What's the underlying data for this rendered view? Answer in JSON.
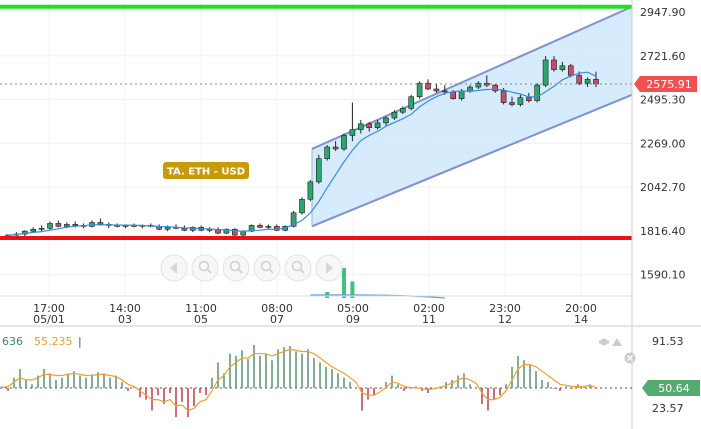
{
  "chart_data": [
    {
      "type": "candlestick",
      "title": "",
      "watermark": "TA.  ETH - USD",
      "ylim": [
        1480,
        3010
      ],
      "y_ticks": [
        "2947.90",
        "2721.60",
        "2495.30",
        "2269.00",
        "2042.70",
        "1816.40",
        "1590.10"
      ],
      "price_label": "2575.91",
      "last_price": 2575.91,
      "x_ticks": [
        {
          "time": "17:00",
          "date": "05/01"
        },
        {
          "time": "14:00",
          "date": "03"
        },
        {
          "time": "11:00",
          "date": "05"
        },
        {
          "time": "08:00",
          "date": "07"
        },
        {
          "time": "05:00",
          "date": "09"
        },
        {
          "time": "02:00",
          "date": "11"
        },
        {
          "time": "23:00",
          "date": "12"
        },
        {
          "time": "20:00",
          "date": "14"
        }
      ],
      "resistance": 2975,
      "support": 1780,
      "channel": {
        "lower_start": 1840,
        "lower_end": 2520,
        "upper_start": 2240,
        "upper_end": 2975
      },
      "candles": [
        [
          1780,
          1800,
          1770,
          1795
        ],
        [
          1795,
          1810,
          1785,
          1800
        ],
        [
          1800,
          1820,
          1790,
          1815
        ],
        [
          1815,
          1835,
          1805,
          1825
        ],
        [
          1825,
          1845,
          1815,
          1830
        ],
        [
          1830,
          1865,
          1820,
          1855
        ],
        [
          1855,
          1870,
          1835,
          1840
        ],
        [
          1840,
          1860,
          1830,
          1850
        ],
        [
          1850,
          1865,
          1835,
          1845
        ],
        [
          1845,
          1855,
          1830,
          1840
        ],
        [
          1840,
          1870,
          1835,
          1860
        ],
        [
          1860,
          1880,
          1845,
          1850
        ],
        [
          1850,
          1860,
          1830,
          1845
        ],
        [
          1845,
          1855,
          1835,
          1840
        ],
        [
          1840,
          1850,
          1830,
          1845
        ],
        [
          1845,
          1855,
          1835,
          1840
        ],
        [
          1840,
          1850,
          1830,
          1845
        ],
        [
          1845,
          1855,
          1835,
          1840
        ],
        [
          1840,
          1850,
          1820,
          1825
        ],
        [
          1825,
          1845,
          1815,
          1835
        ],
        [
          1835,
          1850,
          1825,
          1830
        ],
        [
          1830,
          1845,
          1815,
          1820
        ],
        [
          1820,
          1840,
          1810,
          1835
        ],
        [
          1835,
          1845,
          1815,
          1820
        ],
        [
          1820,
          1835,
          1810,
          1825
        ],
        [
          1825,
          1835,
          1800,
          1805
        ],
        [
          1805,
          1830,
          1800,
          1825
        ],
        [
          1825,
          1830,
          1790,
          1795
        ],
        [
          1795,
          1820,
          1785,
          1815
        ],
        [
          1815,
          1850,
          1810,
          1845
        ],
        [
          1845,
          1855,
          1830,
          1835
        ],
        [
          1835,
          1850,
          1825,
          1840
        ],
        [
          1840,
          1850,
          1815,
          1820
        ],
        [
          1820,
          1845,
          1815,
          1840
        ],
        [
          1840,
          1920,
          1835,
          1910
        ],
        [
          1910,
          1990,
          1900,
          1980
        ],
        [
          1980,
          2080,
          1970,
          2070
        ],
        [
          2070,
          2210,
          2060,
          2190
        ],
        [
          2190,
          2260,
          2180,
          2250
        ],
        [
          2250,
          2280,
          2230,
          2240
        ],
        [
          2240,
          2320,
          2230,
          2310
        ],
        [
          2310,
          2480,
          2280,
          2340
        ],
        [
          2340,
          2390,
          2320,
          2370
        ],
        [
          2370,
          2380,
          2330,
          2350
        ],
        [
          2350,
          2390,
          2340,
          2375
        ],
        [
          2375,
          2410,
          2360,
          2400
        ],
        [
          2400,
          2440,
          2390,
          2430
        ],
        [
          2430,
          2460,
          2420,
          2450
        ],
        [
          2450,
          2520,
          2440,
          2510
        ],
        [
          2510,
          2590,
          2500,
          2580
        ],
        [
          2580,
          2600,
          2545,
          2550
        ],
        [
          2550,
          2575,
          2530,
          2540
        ],
        [
          2540,
          2570,
          2520,
          2535
        ],
        [
          2535,
          2545,
          2495,
          2500
        ],
        [
          2500,
          2550,
          2490,
          2540
        ],
        [
          2540,
          2570,
          2530,
          2560
        ],
        [
          2560,
          2590,
          2550,
          2580
        ],
        [
          2580,
          2620,
          2560,
          2570
        ],
        [
          2570,
          2575,
          2530,
          2540
        ],
        [
          2540,
          2555,
          2470,
          2480
        ],
        [
          2480,
          2510,
          2460,
          2470
        ],
        [
          2470,
          2520,
          2460,
          2505
        ],
        [
          2505,
          2530,
          2480,
          2490
        ],
        [
          2490,
          2580,
          2480,
          2570
        ],
        [
          2570,
          2720,
          2560,
          2700
        ],
        [
          2700,
          2720,
          2640,
          2650
        ],
        [
          2650,
          2690,
          2640,
          2670
        ],
        [
          2670,
          2680,
          2610,
          2620
        ],
        [
          2620,
          2640,
          2570,
          2580
        ],
        [
          2580,
          2610,
          2560,
          2600
        ],
        [
          2600,
          2640,
          2560,
          2576
        ]
      ],
      "volume_max": 100,
      "volume_bars": [
        {
          "index": 38,
          "value": 20
        },
        {
          "index": 40,
          "value": 100
        },
        {
          "index": 41,
          "value": 55
        }
      ]
    },
    {
      "type": "bar",
      "title": "",
      "legend_values": [
        "636",
        "55.235"
      ],
      "ylim": [
        14,
        100
      ],
      "y_ticks": [
        "91.53",
        "23.57"
      ],
      "value_label": "50.64",
      "baseline": 50.64,
      "bars": [
        52,
        48,
        60,
        68,
        58,
        54,
        62,
        68,
        64,
        58,
        60,
        64,
        66,
        62,
        60,
        63,
        65,
        64,
        60,
        62,
        56,
        48,
        52,
        42,
        40,
        30,
        44,
        36,
        46,
        24,
        38,
        24,
        34,
        46,
        44,
        60,
        74,
        64,
        82,
        80,
        85,
        77,
        90,
        80,
        82,
        76,
        86,
        88,
        89,
        84,
        82,
        86,
        78,
        74,
        70,
        68,
        64,
        60,
        56,
        50,
        30,
        40,
        44,
        50,
        56,
        62,
        54,
        48,
        50,
        52,
        48,
        46,
        50,
        52,
        56,
        58,
        62,
        64,
        54,
        50,
        36,
        30,
        40,
        44,
        54,
        70,
        80,
        76,
        72,
        66,
        58,
        56,
        50,
        48,
        52,
        50,
        54,
        52,
        54,
        50
      ],
      "line": [
        51,
        52,
        56,
        60,
        58,
        58,
        60,
        63,
        63,
        62,
        62,
        63,
        64,
        63,
        62,
        62,
        63,
        63,
        62,
        61,
        58,
        54,
        52,
        48,
        44,
        40,
        40,
        38,
        40,
        34,
        35,
        30,
        32,
        38,
        40,
        48,
        58,
        62,
        70,
        74,
        78,
        78,
        82,
        82,
        82,
        80,
        82,
        84,
        86,
        85,
        84,
        84,
        82,
        78,
        74,
        70,
        67,
        64,
        60,
        56,
        46,
        44,
        44,
        47,
        51,
        56,
        55,
        52,
        51,
        51,
        50,
        49,
        50,
        51,
        53,
        55,
        58,
        60,
        58,
        55,
        46,
        40,
        40,
        42,
        48,
        58,
        68,
        72,
        72,
        70,
        66,
        62,
        58,
        54,
        53,
        52,
        52,
        52,
        53,
        51
      ]
    }
  ],
  "toolbar": {
    "icons": [
      "prev-icon",
      "zoom-in-icon",
      "zoom-out-icon",
      "zoom-in-area-icon",
      "zoom-out-area-icon",
      "next-icon"
    ]
  },
  "colors": {
    "resistance": "#22dd22",
    "support": "#ee1111",
    "channel_fill": "#cfe8fb",
    "channel_line": "#8090d0",
    "up_candle": "#2aa66e",
    "down_candle": "#c0506a",
    "ma_line": "#3a8fd8",
    "volume": "#3cc47c",
    "indicator_bar_up": "#4f8a6a",
    "indicator_bar_down": "#b43040",
    "indicator_line": "#f0a030",
    "price_label_bg": "#f05050",
    "value_label_bg": "#55aa70"
  }
}
